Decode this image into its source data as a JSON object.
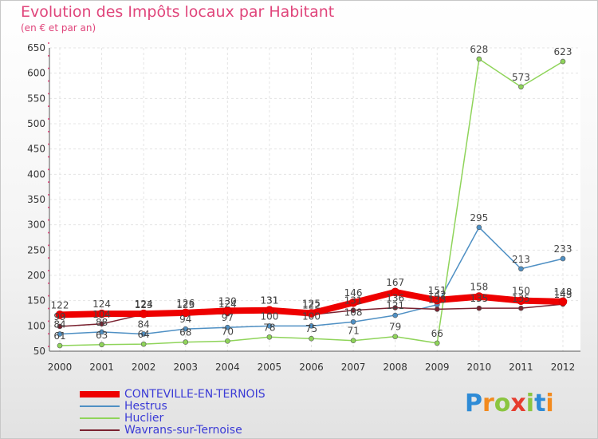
{
  "header": {
    "title": "Evolution des Impôts locaux par Habitant",
    "subtitle": "(en € et par an)"
  },
  "logo": {
    "text": "Proxiti",
    "letters": [
      "P",
      "r",
      "o",
      "x",
      "i",
      "t",
      "i"
    ]
  },
  "chart_data": {
    "type": "line",
    "title": "Evolution des Impôts locaux par Habitant",
    "subtitle": "(en € et par an)",
    "xlabel": "",
    "ylabel": "",
    "ylim": [
      50,
      650
    ],
    "yticks": [
      50,
      100,
      150,
      200,
      250,
      300,
      350,
      400,
      450,
      500,
      550,
      600,
      650
    ],
    "categories": [
      "2000",
      "2001",
      "2002",
      "2003",
      "2004",
      "2005",
      "2006",
      "2007",
      "2008",
      "2009",
      "2010",
      "2011",
      "2012"
    ],
    "legend_position": "bottom-left",
    "series": [
      {
        "name": "Hestrus",
        "color": "#4f90c4",
        "width": 1.5,
        "values": [
          84,
          88,
          84,
          94,
          97,
          100,
          100,
          108,
          121,
          142,
          295,
          213,
          233
        ],
        "labels": [
          "84",
          "88",
          "84",
          "94",
          "97",
          "100",
          "100",
          "108",
          "121",
          "142",
          "295",
          "213",
          "233"
        ]
      },
      {
        "name": "Huclier",
        "color": "#8fd45a",
        "width": 1.5,
        "values": [
          61,
          63,
          64,
          68,
          70,
          78,
          75,
          71,
          79,
          66,
          628,
          573,
          623
        ],
        "labels": [
          "61",
          "63",
          "64",
          "68",
          "70",
          "78",
          "75",
          "71",
          "79",
          "66",
          "628",
          "573",
          "623"
        ]
      },
      {
        "name": "Wavrans-sur-Ternoise",
        "color": "#7a2230",
        "width": 1.5,
        "values": [
          99,
          104,
          123,
          123,
          124,
          131,
          122,
          131,
          136,
          133,
          135,
          135,
          143
        ],
        "labels": [
          "99",
          "104",
          "123",
          "123",
          "124",
          "131",
          "122",
          "131",
          "136",
          "133",
          "135",
          "135",
          "143"
        ]
      },
      {
        "name": "CONTEVILLE-EN-TERNOIS",
        "color": "#ee0000",
        "width": 8,
        "values": [
          122,
          124,
          124,
          126,
          130,
          131,
          125,
          146,
          167,
          151,
          158,
          150,
          148
        ],
        "labels": [
          "122",
          "124",
          "124",
          "126",
          "130",
          "131",
          "125",
          "146",
          "167",
          "151",
          "158",
          "150",
          "148"
        ]
      }
    ],
    "legend": [
      {
        "name": "CONTEVILLE-EN-TERNOIS",
        "color": "#ee0000",
        "text_color": "#3b3bd6"
      },
      {
        "name": "Hestrus",
        "color": "#4f90c4",
        "text_color": "#3b3bd6"
      },
      {
        "name": "Huclier",
        "color": "#8fd45a",
        "text_color": "#3b3bd6"
      },
      {
        "name": "Wavrans-sur-Ternoise",
        "color": "#7a2230",
        "text_color": "#3b3bd6"
      }
    ]
  }
}
